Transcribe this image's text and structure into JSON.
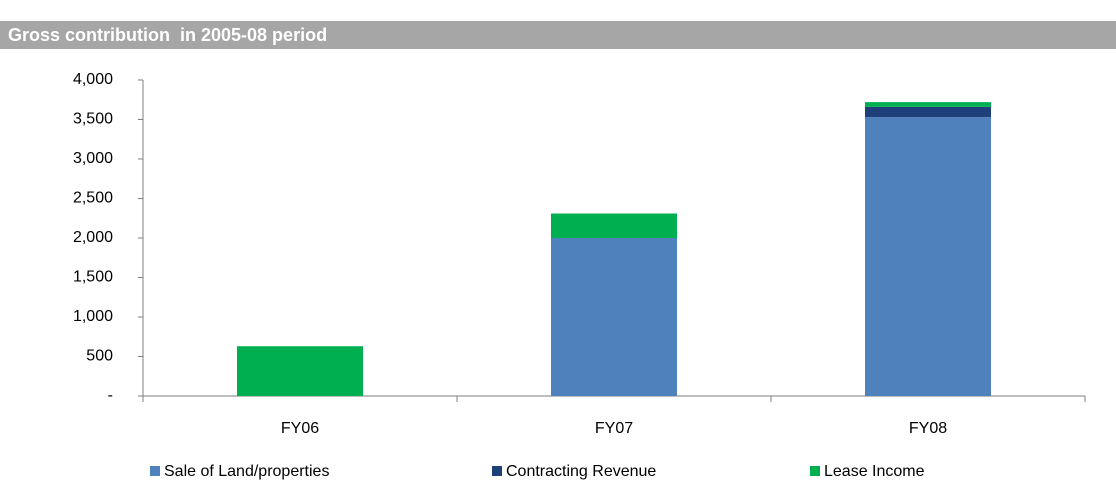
{
  "chart_data": {
    "type": "bar",
    "stacked": true,
    "title": "Gross contribution  in 2005-08 period",
    "categories": [
      "FY06",
      "FY07",
      "FY08"
    ],
    "series": [
      {
        "name": "Sale of Land/properties",
        "color": "#4f81bd",
        "values": [
          0,
          2000,
          3530
        ]
      },
      {
        "name": "Contracting Revenue",
        "color": "#1f3f7a",
        "values": [
          0,
          0,
          130
        ]
      },
      {
        "name": "Lease Income",
        "color": "#00b050",
        "values": [
          630,
          310,
          60
        ]
      }
    ],
    "ylim": [
      0,
      4000
    ],
    "yticks": [
      {
        "value": 0,
        "label": "-"
      },
      500,
      {
        "value": 1000,
        "label": "1,000"
      },
      {
        "value": 1500,
        "label": "1,500"
      },
      {
        "value": 2000,
        "label": "2,000"
      },
      {
        "value": 2500,
        "label": "2,500"
      },
      {
        "value": 3000,
        "label": "3,000"
      },
      {
        "value": 3500,
        "label": "3,500"
      },
      {
        "value": 4000,
        "label": "4,000"
      }
    ],
    "grid": false
  }
}
